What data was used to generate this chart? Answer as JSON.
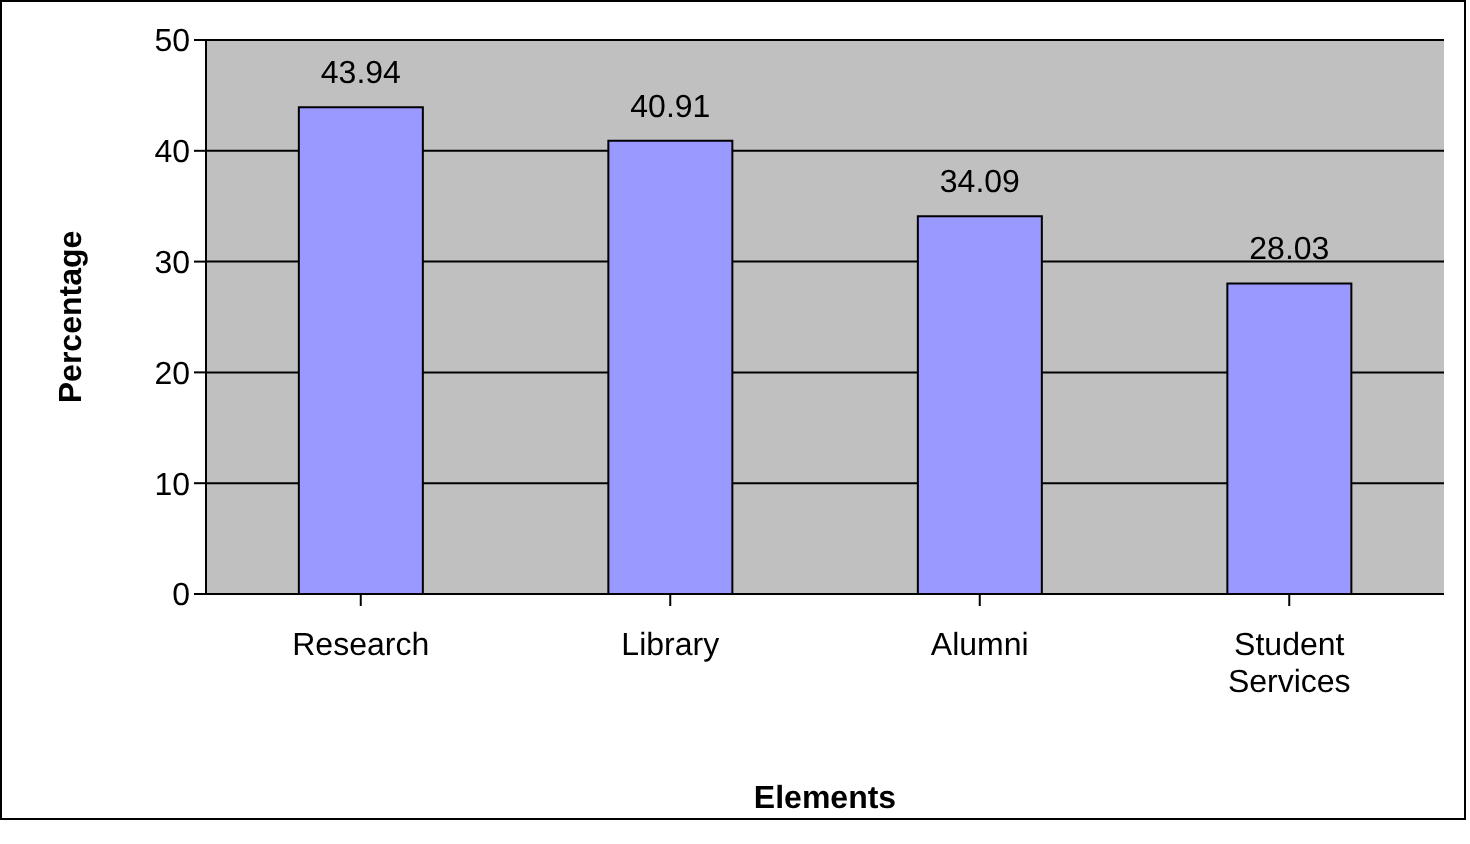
{
  "chart_data": {
    "type": "bar",
    "xlabel": "Elements",
    "ylabel": "Percentage",
    "categories": [
      "Research",
      "Library",
      "Alumni",
      "Student Services"
    ],
    "values": [
      43.94,
      40.91,
      34.09,
      28.03
    ],
    "color": "#9999ff",
    "ylim": [
      0,
      50
    ],
    "yticks": [
      0,
      10,
      20,
      30,
      40,
      50
    ],
    "grid": "y",
    "data_labels": true
  }
}
